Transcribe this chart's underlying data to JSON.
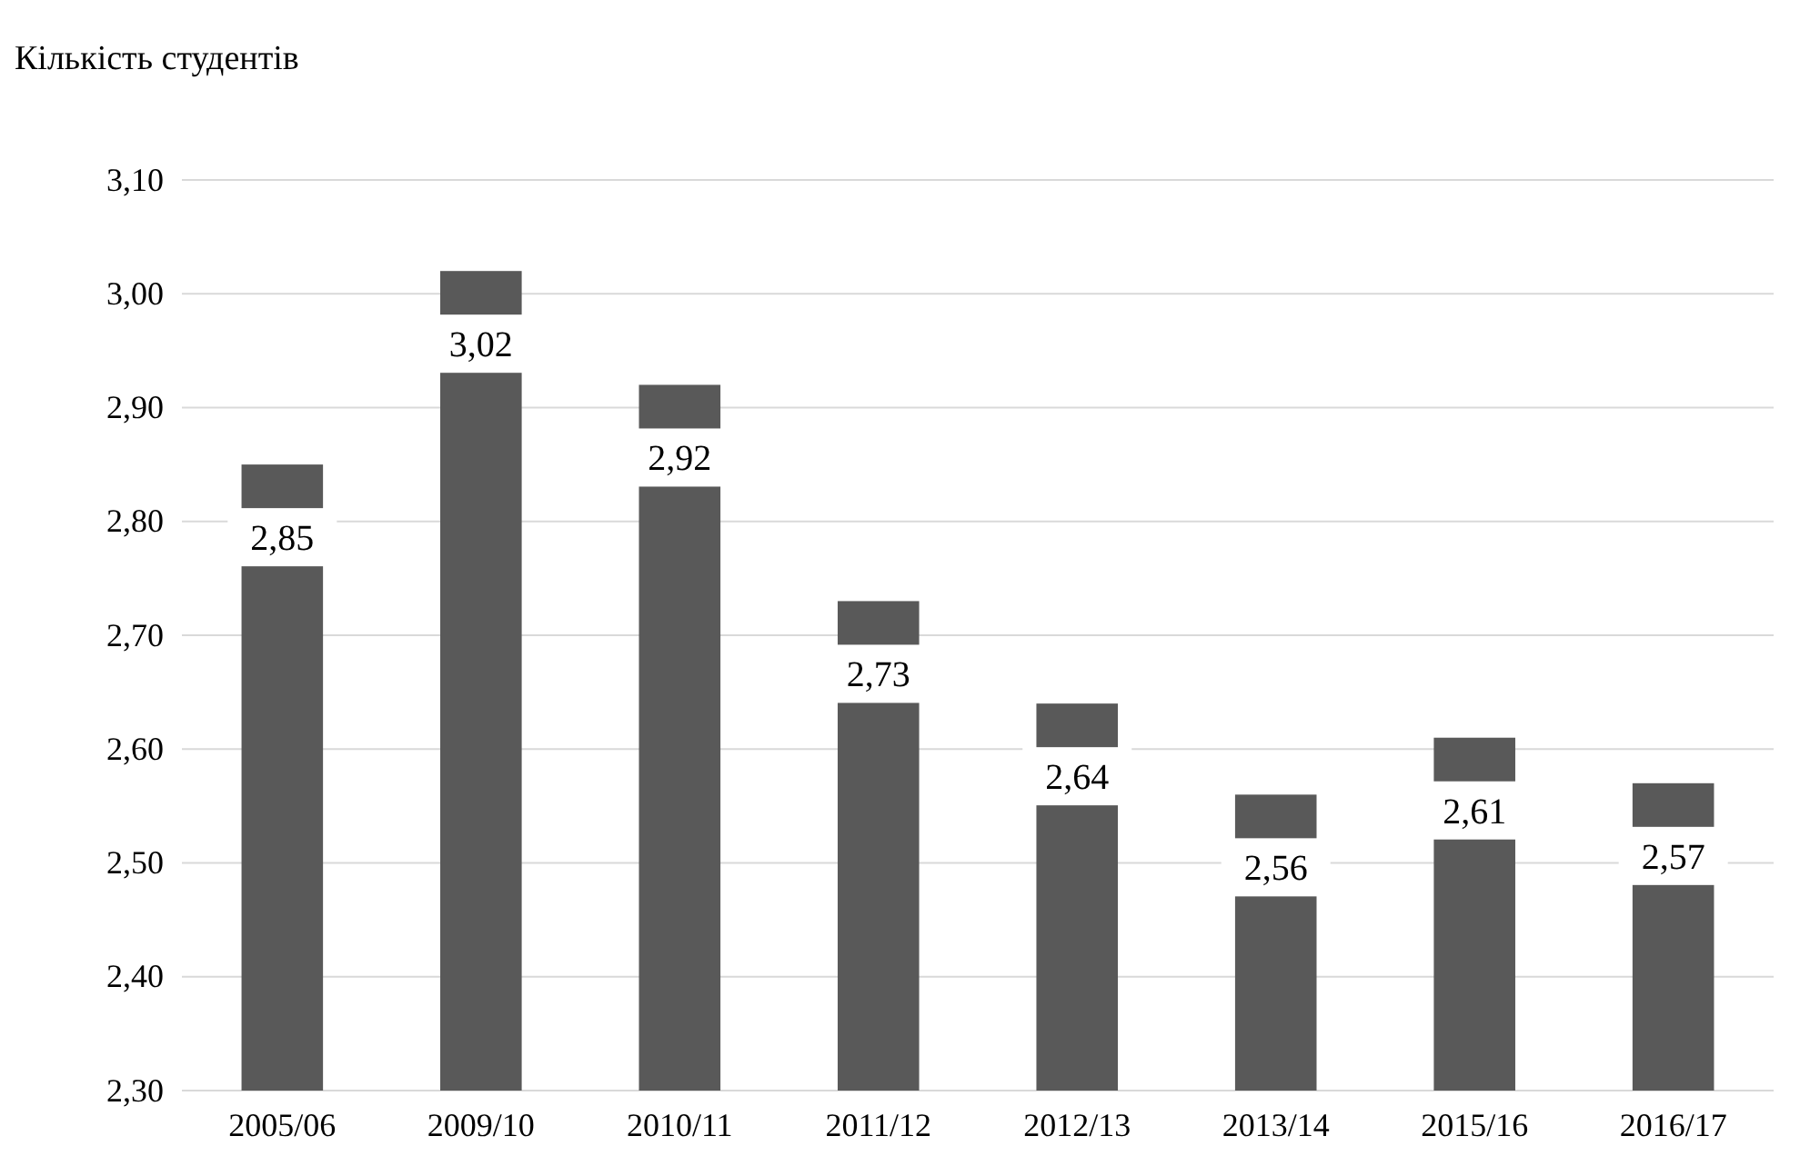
{
  "chart_data": {
    "type": "bar",
    "ylabel": "Кількість студентів",
    "categories": [
      "2005/06",
      "2009/10",
      "2010/11",
      "2011/12",
      "2012/13",
      "2013/14",
      "2015/16",
      "2016/17"
    ],
    "values": [
      2.85,
      3.02,
      2.92,
      2.73,
      2.64,
      2.56,
      2.61,
      2.57
    ],
    "value_labels": [
      "2,85",
      "3,02",
      "2,92",
      "2,73",
      "2,64",
      "2,56",
      "2,61",
      "2,57"
    ],
    "color": "#595959",
    "ylim": [
      2.3,
      3.1
    ],
    "yticks": [
      {
        "value": 2.3,
        "label": "2,30"
      },
      {
        "value": 2.4,
        "label": "2,40"
      },
      {
        "value": 2.5,
        "label": "2,50"
      },
      {
        "value": 2.6,
        "label": "2,60"
      },
      {
        "value": 2.7,
        "label": "2,70"
      },
      {
        "value": 2.8,
        "label": "2,80"
      },
      {
        "value": 2.9,
        "label": "2,90"
      },
      {
        "value": 3.0,
        "label": "3,00"
      },
      {
        "value": 3.1,
        "label": "3,10"
      }
    ],
    "grid": "y"
  }
}
